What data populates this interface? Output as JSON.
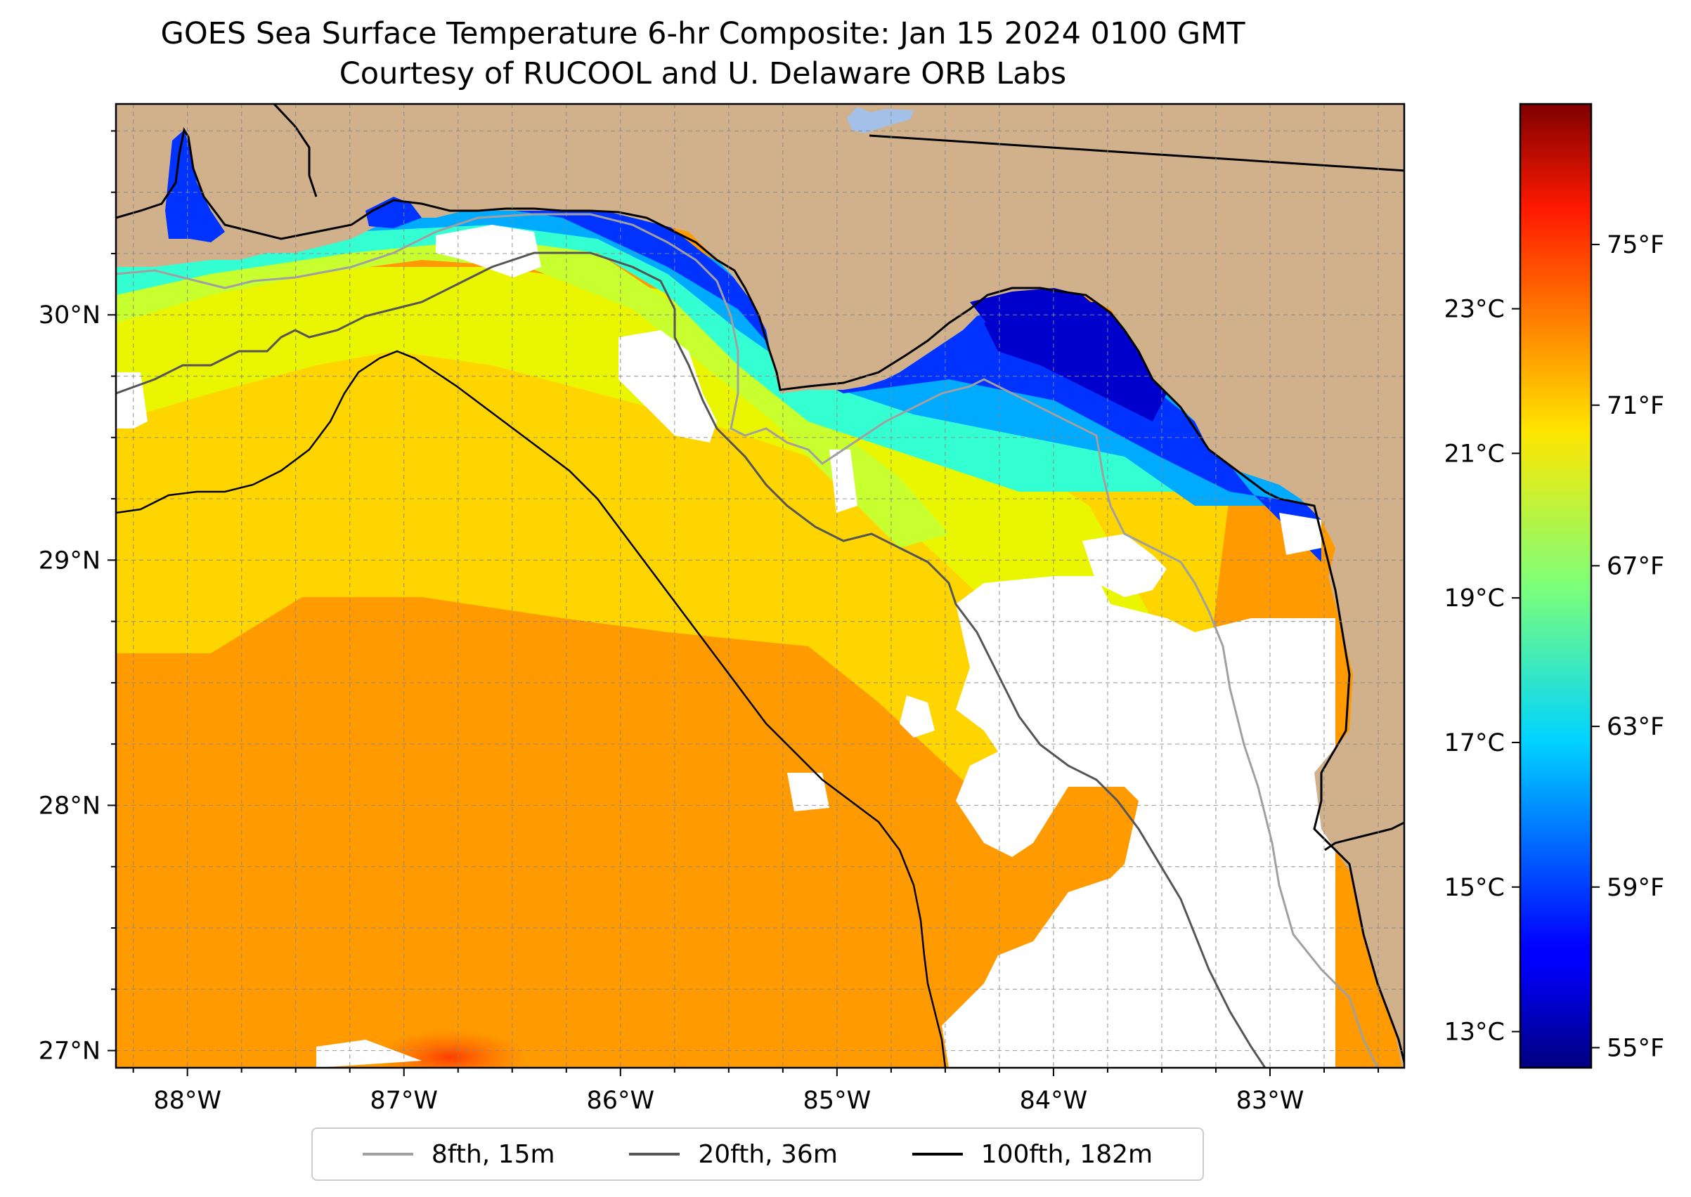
{
  "title": {
    "line1": "GOES Sea Surface Temperature 6-hr Composite: Jan 15 2024 0100 GMT",
    "line2": "Courtesy of RUCOOL and U. Delaware ORB Labs"
  },
  "map": {
    "extent": {
      "lon_min": -88.33,
      "lon_max": -82.38,
      "lat_min": 26.93,
      "lat_max": 30.86
    },
    "lon_ticks": [
      {
        "value": -88,
        "label": "88°W"
      },
      {
        "value": -87,
        "label": "87°W"
      },
      {
        "value": -86,
        "label": "86°W"
      },
      {
        "value": -85,
        "label": "85°W"
      },
      {
        "value": -84,
        "label": "84°W"
      },
      {
        "value": -83,
        "label": "83°W"
      }
    ],
    "lat_ticks": [
      {
        "value": 27,
        "label": "27°N"
      },
      {
        "value": 28,
        "label": "28°N"
      },
      {
        "value": 29,
        "label": "29°N"
      },
      {
        "value": 30,
        "label": "30°N"
      }
    ],
    "grid": true,
    "grid_interval_deg": 0.25,
    "land_color": "#d0b18b",
    "no_data_color": "#ffffff"
  },
  "colorbar": {
    "colormap": "jet",
    "min_f": 54.5,
    "max_f": 78.5,
    "fahrenheit_ticks": [
      {
        "value": 55,
        "label": "55°F"
      },
      {
        "value": 59,
        "label": "59°F"
      },
      {
        "value": 63,
        "label": "63°F"
      },
      {
        "value": 67,
        "label": "67°F"
      },
      {
        "value": 71,
        "label": "71°F"
      },
      {
        "value": 75,
        "label": "75°F"
      }
    ],
    "celsius_ticks": [
      {
        "value": 13,
        "label": "13°C"
      },
      {
        "value": 15,
        "label": "15°C"
      },
      {
        "value": 17,
        "label": "17°C"
      },
      {
        "value": 19,
        "label": "19°C"
      },
      {
        "value": 21,
        "label": "21°C"
      },
      {
        "value": 23,
        "label": "23°C"
      }
    ]
  },
  "legend": {
    "items": [
      {
        "label": "8fth, 15m",
        "color": "#a0a0a0"
      },
      {
        "label": "20fth, 36m",
        "color": "#555555"
      },
      {
        "label": "100fth, 182m",
        "color": "#000000"
      }
    ]
  }
}
